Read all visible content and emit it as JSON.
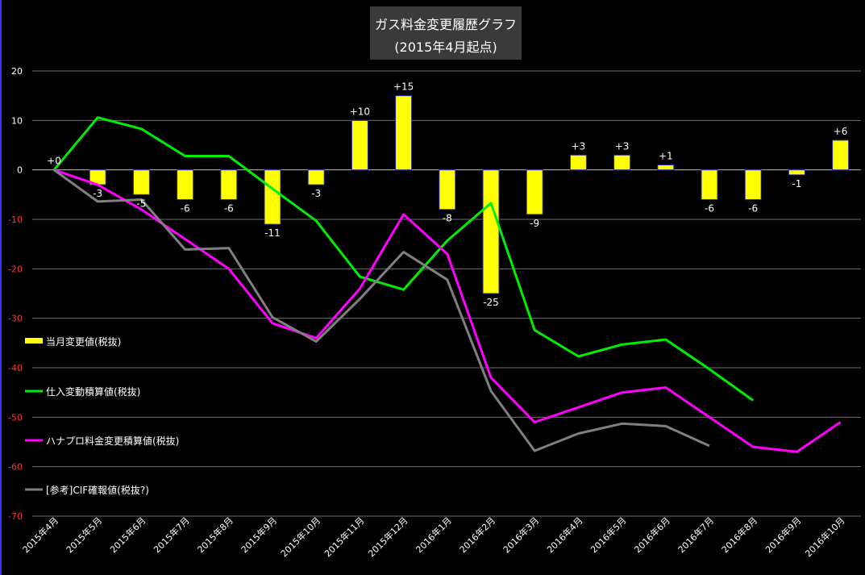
{
  "chart_data": {
    "type": "bar+line",
    "title": [
      "ガス料金変更履歴グラフ",
      "(2015年4月起点)"
    ],
    "categories": [
      "2015年4月",
      "2015年5月",
      "2015年6月",
      "2015年7月",
      "2015年8月",
      "2015年9月",
      "2015年10月",
      "2015年11月",
      "2015年12月",
      "2016年1月",
      "2016年2月",
      "2016年3月",
      "2016年4月",
      "2016年5月",
      "2016年6月",
      "2016年7月",
      "2016年8月",
      "2016年9月",
      "2016年10月"
    ],
    "ylim": [
      -70,
      20
    ],
    "yticks": [
      20,
      10,
      0,
      -10,
      -20,
      -30,
      -40,
      -50,
      -60,
      -70
    ],
    "grid": true,
    "legend_placement": "left-middle",
    "series": [
      {
        "name": "当月変更値(税抜)",
        "kind": "bar",
        "color": "#ffff00",
        "values": [
          0,
          -3,
          -5,
          -6,
          -6,
          -11,
          -3,
          10,
          15,
          -8,
          -25,
          -9,
          3,
          3,
          1,
          -6,
          -6,
          -1,
          6
        ],
        "labels": [
          "+0",
          "-3",
          "-5",
          "-6",
          "-6",
          "-11",
          "-3",
          "+10",
          "+15",
          "-8",
          "-25",
          "-9",
          "+3",
          "+3",
          "+1",
          "-6",
          "-6",
          "-1",
          "+6"
        ]
      },
      {
        "name": "仕入変動積算値(税抜)",
        "kind": "line",
        "color": "#00ee00",
        "values": [
          0,
          10.6,
          8.3,
          2.8,
          2.8,
          -3.8,
          -10.3,
          -21.6,
          -24.2,
          -14.3,
          -6.7,
          -32.4,
          -37.7,
          -35.3,
          -34.3,
          -40.3,
          -46.6,
          null,
          null
        ]
      },
      {
        "name": "ハナプロ料金変更積算値(税抜)",
        "kind": "line",
        "color": "#ff00ff",
        "values": [
          0,
          -3,
          -8,
          -14,
          -20,
          -31,
          -34,
          -24,
          -9,
          -17,
          -42,
          -51,
          -48,
          -45,
          -44,
          -50,
          -56,
          -57,
          -51
        ]
      },
      {
        "name": "[参考]CIF確報値(税抜?)",
        "kind": "line",
        "color": "#808080",
        "values": [
          0,
          -6.4,
          -6.0,
          -16.1,
          -15.8,
          -29.8,
          -34.7,
          -26.1,
          -16.6,
          -22.2,
          -44.7,
          -56.8,
          -53.3,
          -51.3,
          -51.8,
          -55.8,
          null,
          null,
          null
        ]
      }
    ]
  }
}
